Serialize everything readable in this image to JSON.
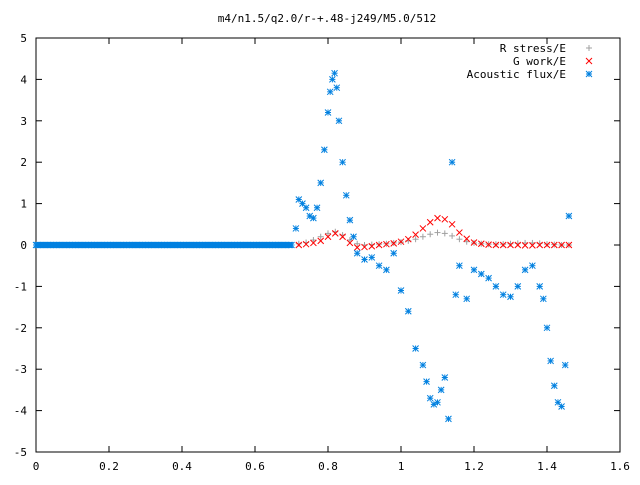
{
  "chart_data": {
    "type": "scatter",
    "title": "m4/n1.5/q2.0/r-+.48-j249/M5.0/512",
    "xlabel": "",
    "ylabel": "",
    "xlim": [
      0,
      1.6
    ],
    "ylim": [
      -5,
      5
    ],
    "xticks": [
      "0",
      "0.2",
      "0.4",
      "0.6",
      "0.8",
      "1",
      "1.2",
      "1.4",
      "1.6"
    ],
    "yticks": [
      "5",
      "4",
      "3",
      "2",
      "1",
      "0",
      "-1",
      "-2",
      "-3",
      "-4",
      "-5"
    ],
    "grid": false,
    "legend_position": "top-right",
    "series": [
      {
        "name": "R stress/E",
        "marker": "plus",
        "color": "#a0a0a0",
        "x": [
          0.72,
          0.74,
          0.76,
          0.78,
          0.8,
          0.82,
          0.84,
          0.86,
          0.88,
          0.9,
          0.92,
          0.94,
          0.96,
          0.98,
          1.0,
          1.02,
          1.04,
          1.06,
          1.08,
          1.1,
          1.12,
          1.14,
          1.16,
          1.18,
          1.2,
          1.22,
          1.24,
          1.26,
          1.28,
          1.3,
          1.32,
          1.34,
          1.36,
          1.38,
          1.4,
          1.42,
          1.44,
          1.46
        ],
        "y": [
          0.03,
          0.06,
          0.12,
          0.2,
          0.28,
          0.32,
          0.24,
          0.12,
          0.03,
          0.0,
          0.01,
          0.02,
          0.03,
          0.05,
          0.07,
          0.1,
          0.14,
          0.2,
          0.26,
          0.3,
          0.28,
          0.22,
          0.14,
          0.08,
          0.05,
          0.03,
          0.02,
          0.02,
          0.02,
          0.03,
          0.04,
          0.05,
          0.05,
          0.04,
          0.02,
          0.01,
          0.0,
          0.0
        ]
      },
      {
        "name": "G work/E",
        "marker": "cross",
        "color": "#ff0000",
        "x": [
          0.72,
          0.74,
          0.76,
          0.78,
          0.8,
          0.82,
          0.84,
          0.86,
          0.88,
          0.9,
          0.92,
          0.94,
          0.96,
          0.98,
          1.0,
          1.02,
          1.04,
          1.06,
          1.08,
          1.1,
          1.12,
          1.14,
          1.16,
          1.18,
          1.2,
          1.22,
          1.24,
          1.26,
          1.28,
          1.3,
          1.32,
          1.34,
          1.36,
          1.38,
          1.4,
          1.42,
          1.44,
          1.46
        ],
        "y": [
          0.0,
          0.02,
          0.05,
          0.1,
          0.2,
          0.28,
          0.2,
          0.05,
          -0.06,
          -0.05,
          -0.03,
          0.0,
          0.02,
          0.04,
          0.08,
          0.14,
          0.25,
          0.4,
          0.55,
          0.65,
          0.62,
          0.5,
          0.3,
          0.15,
          0.06,
          0.03,
          0.01,
          0.0,
          0.0,
          0.0,
          0.0,
          -0.01,
          -0.01,
          0.0,
          0.0,
          0.0,
          0.0,
          0.0
        ]
      },
      {
        "name": "Acoustic flux/E",
        "marker": "star",
        "color": "#0080e0",
        "x": [
          0.712,
          0.72,
          0.73,
          0.74,
          0.75,
          0.76,
          0.77,
          0.78,
          0.79,
          0.8,
          0.806,
          0.812,
          0.818,
          0.824,
          0.83,
          0.84,
          0.85,
          0.86,
          0.87,
          0.88,
          0.9,
          0.92,
          0.94,
          0.96,
          0.98,
          1.0,
          1.02,
          1.04,
          1.06,
          1.07,
          1.08,
          1.09,
          1.1,
          1.11,
          1.12,
          1.13,
          1.14,
          1.15,
          1.16,
          1.18,
          1.2,
          1.22,
          1.24,
          1.26,
          1.28,
          1.3,
          1.32,
          1.34,
          1.36,
          1.38,
          1.39,
          1.4,
          1.41,
          1.42,
          1.43,
          1.44,
          1.45,
          1.46
        ],
        "y": [
          0.4,
          1.1,
          1.0,
          0.9,
          0.7,
          0.65,
          0.9,
          1.5,
          2.3,
          3.2,
          3.7,
          4.0,
          4.15,
          3.8,
          3.0,
          2.0,
          1.2,
          0.6,
          0.2,
          -0.2,
          -0.35,
          -0.3,
          -0.5,
          -0.6,
          -0.2,
          -1.1,
          -1.6,
          -2.5,
          -2.9,
          -3.3,
          -3.7,
          -3.85,
          -3.8,
          -3.5,
          -3.2,
          -4.2,
          2.0,
          -1.2,
          -0.5,
          -1.3,
          -0.6,
          -0.7,
          -0.8,
          -1.0,
          -1.2,
          -1.25,
          -1.0,
          -0.6,
          -0.5,
          -1.0,
          -1.3,
          -2.0,
          -2.8,
          -3.4,
          -3.8,
          -3.9,
          -2.9,
          0.7
        ]
      },
      {
        "name": "",
        "marker": "star",
        "color": "#0080e0",
        "x": [
          0.0,
          0.7
        ],
        "y": [
          0.0,
          0.0
        ]
      }
    ]
  }
}
